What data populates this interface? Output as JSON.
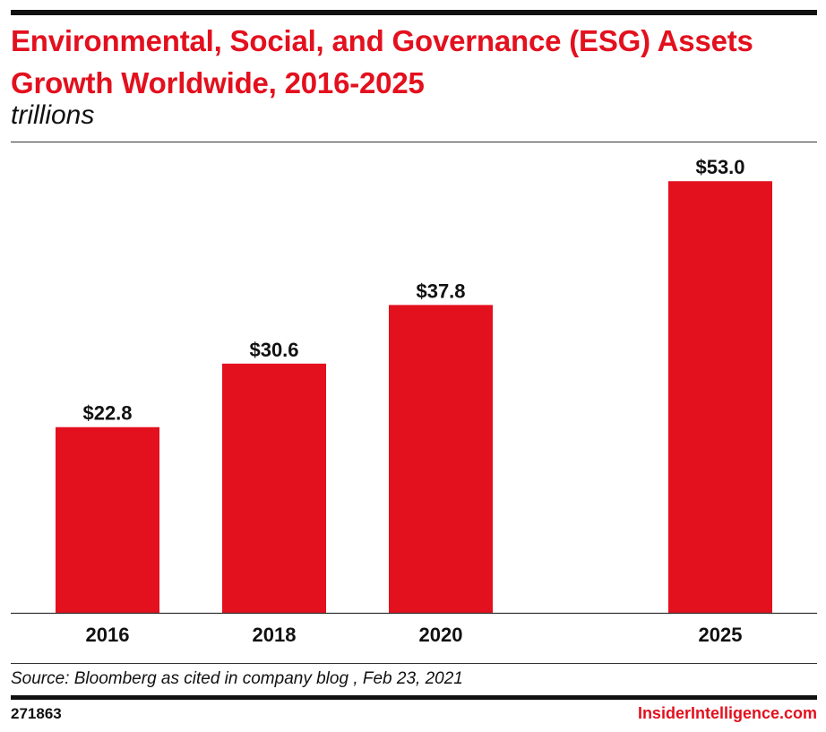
{
  "header": {
    "title": "Environmental, Social, and Governance (ESG) Assets Growth Worldwide, 2016-2025",
    "subtitle": "trillions"
  },
  "chart_data": {
    "type": "bar",
    "title": "Environmental, Social, and Governance (ESG) Assets Growth Worldwide, 2016-2025",
    "subtitle": "trillions",
    "categories": [
      "2016",
      "2018",
      "2020",
      "2025"
    ],
    "values": [
      22.8,
      30.6,
      37.8,
      53.0
    ],
    "data_labels": [
      "$22.8",
      "$30.6",
      "$37.8",
      "$53.0"
    ],
    "xlabel": "",
    "ylabel": "",
    "ylim": [
      0,
      55
    ],
    "grid": false,
    "bar_color": "#e3101e"
  },
  "footer": {
    "source": "Source: Bloomberg as cited in company blog , Feb 23, 2021",
    "chart_id": "271863",
    "brand": "InsiderIntelligence.com",
    "brand_color": "#e3101e"
  }
}
